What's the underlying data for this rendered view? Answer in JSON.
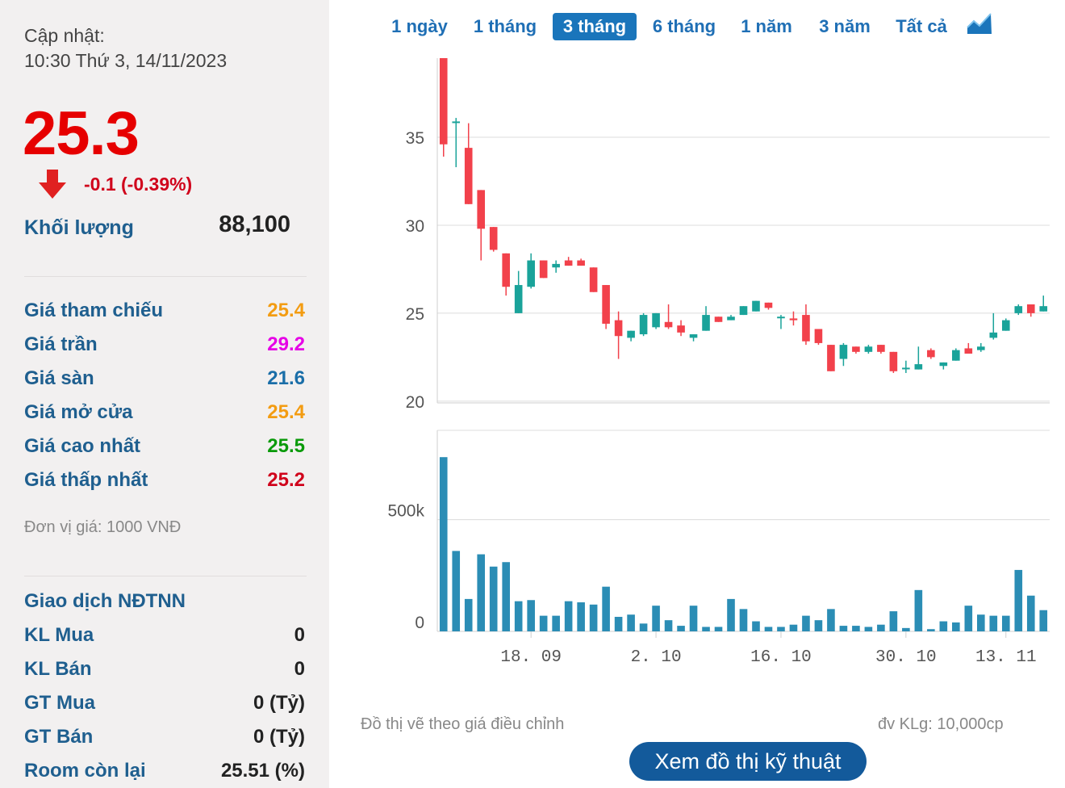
{
  "sidebar": {
    "updated_label": "Cập nhật:",
    "updated_time": "10:30 Thứ 3, 14/11/2023",
    "price": "25.3",
    "change": "-0.1 (-0.39%)",
    "volume_label": "Khối lượng",
    "volume_value": "88,100",
    "stats": [
      {
        "label": "Giá tham chiếu",
        "value": "25.4",
        "color": "#f39c12"
      },
      {
        "label": "Giá trần",
        "value": "29.2",
        "color": "#e600e6"
      },
      {
        "label": "Giá sàn",
        "value": "21.6",
        "color": "#1a6ea8"
      },
      {
        "label": "Giá mở cửa",
        "value": "25.4",
        "color": "#f39c12"
      },
      {
        "label": "Giá cao nhất",
        "value": "25.5",
        "color": "#0a9a0a"
      },
      {
        "label": "Giá thấp nhất",
        "value": "25.2",
        "color": "#d0021b"
      }
    ],
    "unit_note": "Đơn vị giá: 1000 VNĐ",
    "foreign_title": "Giao dịch NĐTNN",
    "foreign": [
      {
        "label": "KL Mua",
        "value": "0"
      },
      {
        "label": "KL Bán",
        "value": "0"
      },
      {
        "label": "GT Mua",
        "value": "0 (Tỷ)"
      },
      {
        "label": "GT Bán",
        "value": "0 (Tỷ)"
      },
      {
        "label": "Room còn lại",
        "value": "25.51 (%)"
      }
    ]
  },
  "tabs": [
    "1 ngày",
    "1 tháng",
    "3 tháng",
    "6 tháng",
    "1 năm",
    "3 năm",
    "Tất cả"
  ],
  "active_tab": "3 tháng",
  "footnote_left": "Đồ thị vẽ theo giá điều chỉnh",
  "footnote_right": "đv KLg: 10,000cp",
  "tech_button": "Xem đồ thị kỹ thuật",
  "chart_data": {
    "type": "candlestick",
    "up_color": "#1aa39a",
    "down_color": "#f2414b",
    "volume_color": "#2b8db5",
    "price_axis": {
      "ylim": [
        19.9,
        39.5
      ],
      "ticks": [
        20,
        25,
        30,
        35
      ]
    },
    "volume_axis": {
      "ylim": [
        0,
        900000
      ],
      "ticks": [
        0,
        500000
      ],
      "tick_labels": [
        "0",
        "500k"
      ]
    },
    "x_ticks": [
      {
        "index": 7,
        "label": "18. 09"
      },
      {
        "index": 17,
        "label": "2. 10"
      },
      {
        "index": 27,
        "label": "16. 10"
      },
      {
        "index": 37,
        "label": "30. 10"
      },
      {
        "index": 45,
        "label": "13. 11"
      }
    ],
    "candles": [
      {
        "o": 39.5,
        "h": 39.5,
        "l": 33.9,
        "c": 34.6,
        "v": 780000
      },
      {
        "o": 35.9,
        "h": 36.1,
        "l": 33.3,
        "c": 35.9,
        "v": 360000
      },
      {
        "o": 34.4,
        "h": 35.8,
        "l": 31.2,
        "c": 31.2,
        "v": 145000
      },
      {
        "o": 32.0,
        "h": 32.0,
        "l": 28.0,
        "c": 29.8,
        "v": 345000
      },
      {
        "o": 29.9,
        "h": 29.9,
        "l": 28.5,
        "c": 28.6,
        "v": 290000
      },
      {
        "o": 28.4,
        "h": 28.4,
        "l": 26.0,
        "c": 26.5,
        "v": 310000
      },
      {
        "o": 25.0,
        "h": 27.4,
        "l": 25.0,
        "c": 26.6,
        "v": 135000
      },
      {
        "o": 26.5,
        "h": 28.4,
        "l": 26.4,
        "c": 28.0,
        "v": 140000
      },
      {
        "o": 28.0,
        "h": 28.0,
        "l": 27.0,
        "c": 27.0,
        "v": 70000
      },
      {
        "o": 27.6,
        "h": 28.0,
        "l": 27.3,
        "c": 27.8,
        "v": 70000
      },
      {
        "o": 28.0,
        "h": 28.2,
        "l": 27.7,
        "c": 27.7,
        "v": 135000
      },
      {
        "o": 28.0,
        "h": 28.1,
        "l": 27.7,
        "c": 27.7,
        "v": 130000
      },
      {
        "o": 27.6,
        "h": 27.6,
        "l": 26.2,
        "c": 26.2,
        "v": 120000
      },
      {
        "o": 26.6,
        "h": 26.6,
        "l": 24.1,
        "c": 24.4,
        "v": 200000
      },
      {
        "o": 24.6,
        "h": 25.1,
        "l": 22.4,
        "c": 23.7,
        "v": 65000
      },
      {
        "o": 23.6,
        "h": 24.0,
        "l": 23.4,
        "c": 24.0,
        "v": 75000
      },
      {
        "o": 23.8,
        "h": 25.0,
        "l": 23.7,
        "c": 24.9,
        "v": 35000
      },
      {
        "o": 24.2,
        "h": 25.0,
        "l": 24.1,
        "c": 25.0,
        "v": 115000
      },
      {
        "o": 24.5,
        "h": 25.5,
        "l": 24.1,
        "c": 24.2,
        "v": 50000
      },
      {
        "o": 24.3,
        "h": 24.6,
        "l": 23.7,
        "c": 23.9,
        "v": 25000
      },
      {
        "o": 23.6,
        "h": 23.8,
        "l": 23.4,
        "c": 23.8,
        "v": 115000
      },
      {
        "o": 24.0,
        "h": 25.4,
        "l": 24.0,
        "c": 24.9,
        "v": 20000
      },
      {
        "o": 24.8,
        "h": 24.8,
        "l": 24.5,
        "c": 24.5,
        "v": 20000
      },
      {
        "o": 24.6,
        "h": 24.9,
        "l": 24.6,
        "c": 24.8,
        "v": 145000
      },
      {
        "o": 24.9,
        "h": 25.4,
        "l": 24.9,
        "c": 25.4,
        "v": 100000
      },
      {
        "o": 25.1,
        "h": 25.7,
        "l": 25.1,
        "c": 25.7,
        "v": 45000
      },
      {
        "o": 25.6,
        "h": 25.6,
        "l": 25.2,
        "c": 25.3,
        "v": 20000
      },
      {
        "o": 24.8,
        "h": 24.9,
        "l": 24.1,
        "c": 24.8,
        "v": 20000
      },
      {
        "o": 24.7,
        "h": 25.1,
        "l": 24.3,
        "c": 24.6,
        "v": 30000
      },
      {
        "o": 24.9,
        "h": 25.5,
        "l": 23.2,
        "c": 23.4,
        "v": 70000
      },
      {
        "o": 24.1,
        "h": 24.1,
        "l": 23.2,
        "c": 23.3,
        "v": 50000
      },
      {
        "o": 23.2,
        "h": 23.2,
        "l": 21.7,
        "c": 21.7,
        "v": 100000
      },
      {
        "o": 22.4,
        "h": 23.3,
        "l": 22.0,
        "c": 23.2,
        "v": 25000
      },
      {
        "o": 23.1,
        "h": 23.1,
        "l": 22.7,
        "c": 22.8,
        "v": 25000
      },
      {
        "o": 22.8,
        "h": 23.2,
        "l": 22.7,
        "c": 23.1,
        "v": 20000
      },
      {
        "o": 23.2,
        "h": 23.2,
        "l": 22.7,
        "c": 22.8,
        "v": 30000
      },
      {
        "o": 22.8,
        "h": 22.8,
        "l": 21.6,
        "c": 21.7,
        "v": 90000
      },
      {
        "o": 21.9,
        "h": 22.3,
        "l": 21.6,
        "c": 21.9,
        "v": 15000
      },
      {
        "o": 21.8,
        "h": 23.1,
        "l": 21.8,
        "c": 22.1,
        "v": 185000
      },
      {
        "o": 22.9,
        "h": 23.0,
        "l": 22.4,
        "c": 22.5,
        "v": 10000
      },
      {
        "o": 22.0,
        "h": 22.2,
        "l": 21.8,
        "c": 22.2,
        "v": 45000
      },
      {
        "o": 22.3,
        "h": 23.0,
        "l": 22.3,
        "c": 22.9,
        "v": 40000
      },
      {
        "o": 23.0,
        "h": 23.3,
        "l": 22.7,
        "c": 22.7,
        "v": 115000
      },
      {
        "o": 22.9,
        "h": 23.3,
        "l": 22.8,
        "c": 23.1,
        "v": 75000
      },
      {
        "o": 23.6,
        "h": 25.0,
        "l": 23.5,
        "c": 23.9,
        "v": 70000
      },
      {
        "o": 24.0,
        "h": 24.7,
        "l": 24.0,
        "c": 24.6,
        "v": 70000
      },
      {
        "o": 25.0,
        "h": 25.5,
        "l": 24.9,
        "c": 25.4,
        "v": 275000
      },
      {
        "o": 25.5,
        "h": 25.5,
        "l": 24.8,
        "c": 25.0,
        "v": 160000
      },
      {
        "o": 25.1,
        "h": 26.0,
        "l": 25.1,
        "c": 25.4,
        "v": 95000
      }
    ]
  }
}
